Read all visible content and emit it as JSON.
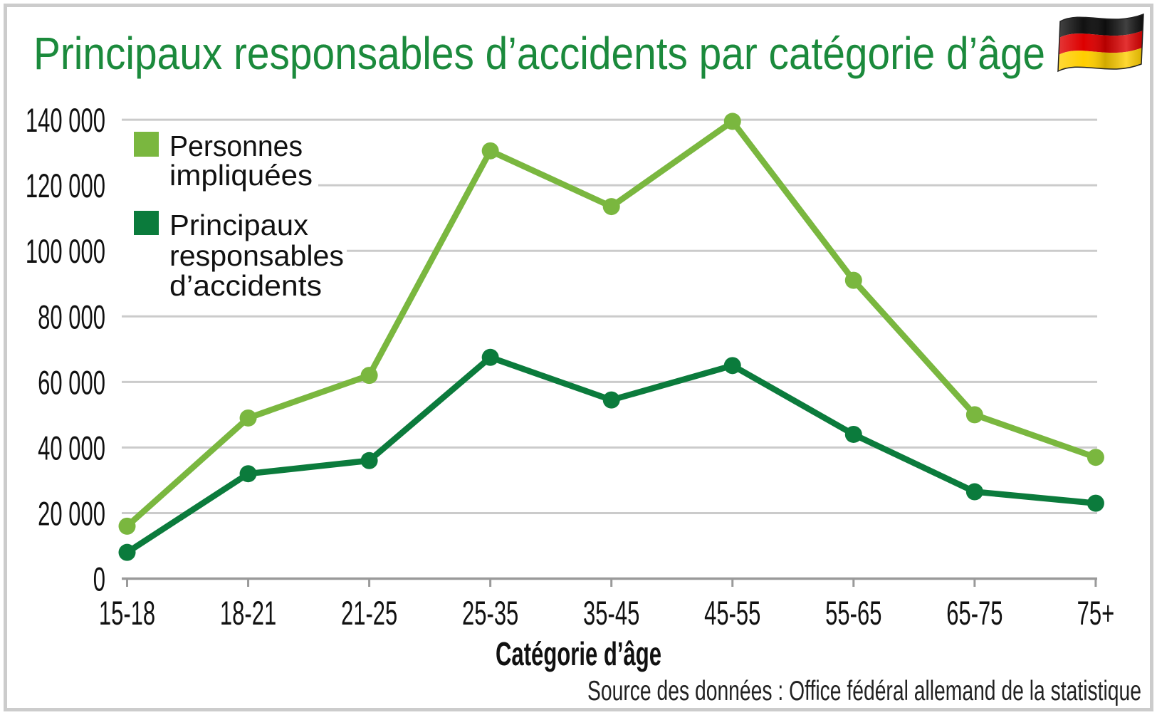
{
  "colors": {
    "title": "#1b8a3c",
    "grid": "#cbcbcb",
    "axis": "#9a9a9a",
    "border": "#cccccc"
  },
  "flag_icon": "germany-flag-icon",
  "chart_data": {
    "type": "line",
    "title": "Principaux responsables d’accidents par catégorie d’âge",
    "xlabel": "Catégorie d’âge",
    "ylabel": "",
    "categories": [
      "15-18",
      "18-21",
      "21-25",
      "25-35",
      "35-45",
      "45-55",
      "55-65",
      "65-75",
      "75+"
    ],
    "series": [
      {
        "legend": [
          "Personnes",
          "impliquées"
        ],
        "color": "#7ab73f",
        "values": [
          16000,
          49000,
          62000,
          130500,
          113500,
          139500,
          91000,
          50000,
          37000
        ]
      },
      {
        "legend": [
          "Principaux",
          "responsables",
          "d’accidents"
        ],
        "color": "#0b7b3c",
        "values": [
          8000,
          32000,
          36000,
          67500,
          54500,
          65000,
          44000,
          26500,
          23000
        ]
      }
    ],
    "y_ticks": [
      0,
      20000,
      40000,
      60000,
      80000,
      100000,
      120000,
      140000
    ],
    "y_tick_labels": [
      "0",
      "20 000",
      "40 000",
      "60 000",
      "80 000",
      "100 000",
      "120 000",
      "140 000"
    ],
    "ylim": [
      0,
      140000
    ],
    "grid": true,
    "legend_position": "top-left",
    "source": "Source des données : Office fédéral allemand de la statistique"
  }
}
